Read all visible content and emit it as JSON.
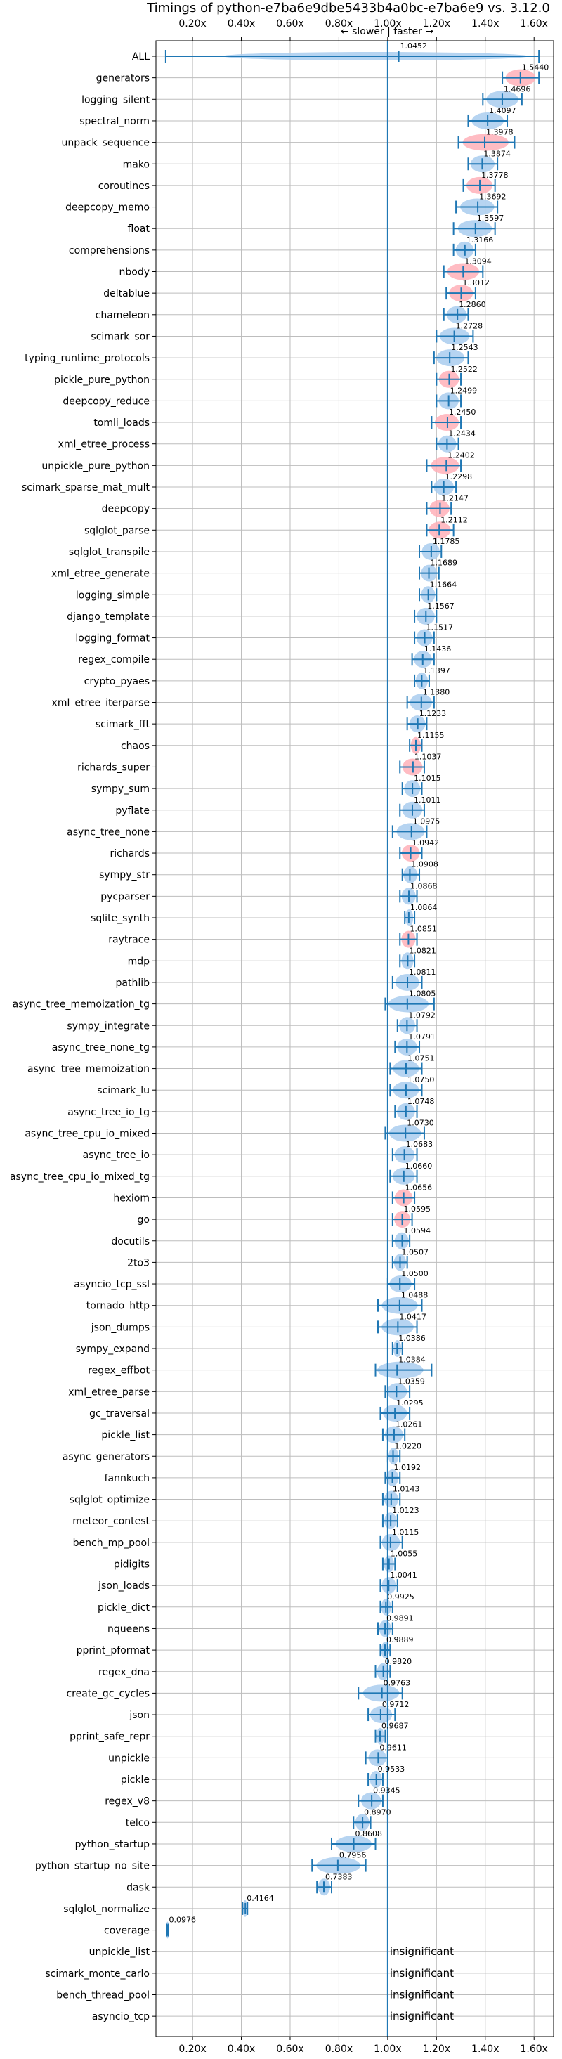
{
  "chart_data": {
    "type": "violin",
    "title": "Timings of python-e7ba6e9dbe5433b4a0bc-e7ba6e9 vs. 3.12.0",
    "direction_note": "← slower  |  faster →",
    "xlim": [
      0.05,
      1.68
    ],
    "xticks": [
      "0.20x",
      "0.40x",
      "0.60x",
      "0.80x",
      "1.00x",
      "1.20x",
      "1.40x",
      "1.60x"
    ],
    "xtick_values": [
      0.2,
      0.4,
      0.6,
      0.8,
      1.0,
      1.2,
      1.4,
      1.6
    ],
    "reference_x": 1.0,
    "insignificant_label": "insignificant",
    "colors": {
      "faster": "#ffb0b8",
      "normal": "#a9cdee",
      "line": "#1f77b4",
      "grid": "#bdbdbd"
    },
    "benchmarks": [
      {
        "name": "ALL",
        "value": 1.0452,
        "low": 0.09,
        "high": 1.62,
        "label": "1.0452"
      },
      {
        "name": "generators",
        "value": 1.544,
        "low": 1.47,
        "high": 1.62,
        "label": "1.5440",
        "faster": true
      },
      {
        "name": "logging_silent",
        "value": 1.4696,
        "low": 1.39,
        "high": 1.55,
        "label": "1.4696"
      },
      {
        "name": "spectral_norm",
        "value": 1.4097,
        "low": 1.33,
        "high": 1.49,
        "label": "1.4097"
      },
      {
        "name": "unpack_sequence",
        "value": 1.3978,
        "low": 1.29,
        "high": 1.52,
        "label": "1.3978",
        "faster": true
      },
      {
        "name": "mako",
        "value": 1.3874,
        "low": 1.33,
        "high": 1.45,
        "label": "1.3874"
      },
      {
        "name": "coroutines",
        "value": 1.3778,
        "low": 1.31,
        "high": 1.44,
        "label": "1.3778",
        "faster": true
      },
      {
        "name": "deepcopy_memo",
        "value": 1.3692,
        "low": 1.28,
        "high": 1.45,
        "label": "1.3692"
      },
      {
        "name": "float",
        "value": 1.3597,
        "low": 1.27,
        "high": 1.44,
        "label": "1.3597"
      },
      {
        "name": "comprehensions",
        "value": 1.3166,
        "low": 1.27,
        "high": 1.36,
        "label": "1.3166"
      },
      {
        "name": "nbody",
        "value": 1.3094,
        "low": 1.23,
        "high": 1.39,
        "label": "1.3094",
        "faster": true
      },
      {
        "name": "deltablue",
        "value": 1.3012,
        "low": 1.24,
        "high": 1.36,
        "label": "1.3012",
        "faster": true
      },
      {
        "name": "chameleon",
        "value": 1.286,
        "low": 1.23,
        "high": 1.33,
        "label": "1.2860"
      },
      {
        "name": "scimark_sor",
        "value": 1.2728,
        "low": 1.2,
        "high": 1.35,
        "label": "1.2728"
      },
      {
        "name": "typing_runtime_protocols",
        "value": 1.2543,
        "low": 1.19,
        "high": 1.33,
        "label": "1.2543"
      },
      {
        "name": "pickle_pure_python",
        "value": 1.2522,
        "low": 1.2,
        "high": 1.3,
        "label": "1.2522",
        "faster": true
      },
      {
        "name": "deepcopy_reduce",
        "value": 1.2499,
        "low": 1.2,
        "high": 1.3,
        "label": "1.2499"
      },
      {
        "name": "tomli_loads",
        "value": 1.245,
        "low": 1.18,
        "high": 1.3,
        "label": "1.2450",
        "faster": true
      },
      {
        "name": "xml_etree_process",
        "value": 1.2434,
        "low": 1.2,
        "high": 1.29,
        "label": "1.2434"
      },
      {
        "name": "unpickle_pure_python",
        "value": 1.2402,
        "low": 1.16,
        "high": 1.3,
        "label": "1.2402",
        "faster": true
      },
      {
        "name": "scimark_sparse_mat_mult",
        "value": 1.2298,
        "low": 1.18,
        "high": 1.28,
        "label": "1.2298"
      },
      {
        "name": "deepcopy",
        "value": 1.2147,
        "low": 1.16,
        "high": 1.26,
        "label": "1.2147",
        "faster": true
      },
      {
        "name": "sqlglot_parse",
        "value": 1.2112,
        "low": 1.16,
        "high": 1.27,
        "label": "1.2112",
        "faster": true
      },
      {
        "name": "sqlglot_transpile",
        "value": 1.1785,
        "low": 1.13,
        "high": 1.22,
        "label": "1.1785"
      },
      {
        "name": "xml_etree_generate",
        "value": 1.1689,
        "low": 1.13,
        "high": 1.21,
        "label": "1.1689"
      },
      {
        "name": "logging_simple",
        "value": 1.1664,
        "low": 1.13,
        "high": 1.2,
        "label": "1.1664"
      },
      {
        "name": "django_template",
        "value": 1.1567,
        "low": 1.11,
        "high": 1.2,
        "label": "1.1567"
      },
      {
        "name": "logging_format",
        "value": 1.1517,
        "low": 1.11,
        "high": 1.19,
        "label": "1.1517"
      },
      {
        "name": "regex_compile",
        "value": 1.1436,
        "low": 1.1,
        "high": 1.19,
        "label": "1.1436"
      },
      {
        "name": "crypto_pyaes",
        "value": 1.1397,
        "low": 1.11,
        "high": 1.17,
        "label": "1.1397"
      },
      {
        "name": "xml_etree_iterparse",
        "value": 1.138,
        "low": 1.08,
        "high": 1.19,
        "label": "1.1380"
      },
      {
        "name": "scimark_fft",
        "value": 1.1233,
        "low": 1.08,
        "high": 1.16,
        "label": "1.1233"
      },
      {
        "name": "chaos",
        "value": 1.1155,
        "low": 1.09,
        "high": 1.14,
        "label": "1.1155",
        "faster": true
      },
      {
        "name": "richards_super",
        "value": 1.1037,
        "low": 1.05,
        "high": 1.15,
        "label": "1.1037",
        "faster": true
      },
      {
        "name": "sympy_sum",
        "value": 1.1015,
        "low": 1.06,
        "high": 1.14,
        "label": "1.1015"
      },
      {
        "name": "pyflate",
        "value": 1.1011,
        "low": 1.05,
        "high": 1.15,
        "label": "1.1011"
      },
      {
        "name": "async_tree_none",
        "value": 1.0975,
        "low": 1.02,
        "high": 1.16,
        "label": "1.0975"
      },
      {
        "name": "richards",
        "value": 1.0942,
        "low": 1.05,
        "high": 1.14,
        "label": "1.0942",
        "faster": true
      },
      {
        "name": "sympy_str",
        "value": 1.0908,
        "low": 1.06,
        "high": 1.13,
        "label": "1.0908"
      },
      {
        "name": "pycparser",
        "value": 1.0868,
        "low": 1.05,
        "high": 1.12,
        "label": "1.0868"
      },
      {
        "name": "sqlite_synth",
        "value": 1.0864,
        "low": 1.07,
        "high": 1.11,
        "label": "1.0864"
      },
      {
        "name": "raytrace",
        "value": 1.0851,
        "low": 1.05,
        "high": 1.12,
        "label": "1.0851",
        "faster": true
      },
      {
        "name": "mdp",
        "value": 1.0821,
        "low": 1.05,
        "high": 1.11,
        "label": "1.0821"
      },
      {
        "name": "pathlib",
        "value": 1.0811,
        "low": 1.02,
        "high": 1.14,
        "label": "1.0811"
      },
      {
        "name": "async_tree_memoization_tg",
        "value": 1.0805,
        "low": 0.99,
        "high": 1.19,
        "label": "1.0805"
      },
      {
        "name": "sympy_integrate",
        "value": 1.0792,
        "low": 1.04,
        "high": 1.12,
        "label": "1.0792"
      },
      {
        "name": "async_tree_none_tg",
        "value": 1.0791,
        "low": 1.03,
        "high": 1.13,
        "label": "1.0791"
      },
      {
        "name": "async_tree_memoization",
        "value": 1.0751,
        "low": 1.01,
        "high": 1.14,
        "label": "1.0751"
      },
      {
        "name": "scimark_lu",
        "value": 1.075,
        "low": 1.01,
        "high": 1.14,
        "label": "1.0750"
      },
      {
        "name": "async_tree_io_tg",
        "value": 1.0748,
        "low": 1.03,
        "high": 1.12,
        "label": "1.0748"
      },
      {
        "name": "async_tree_cpu_io_mixed",
        "value": 1.073,
        "low": 0.99,
        "high": 1.15,
        "label": "1.0730"
      },
      {
        "name": "async_tree_io",
        "value": 1.0683,
        "low": 1.02,
        "high": 1.12,
        "label": "1.0683"
      },
      {
        "name": "async_tree_cpu_io_mixed_tg",
        "value": 1.066,
        "low": 1.01,
        "high": 1.12,
        "label": "1.0660"
      },
      {
        "name": "hexiom",
        "value": 1.0656,
        "low": 1.02,
        "high": 1.11,
        "label": "1.0656",
        "faster": true
      },
      {
        "name": "go",
        "value": 1.0595,
        "low": 1.02,
        "high": 1.1,
        "label": "1.0595",
        "faster": true
      },
      {
        "name": "docutils",
        "value": 1.0594,
        "low": 1.02,
        "high": 1.09,
        "label": "1.0594"
      },
      {
        "name": "2to3",
        "value": 1.0507,
        "low": 1.02,
        "high": 1.08,
        "label": "1.0507"
      },
      {
        "name": "asyncio_tcp_ssl",
        "value": 1.05,
        "low": 1.0,
        "high": 1.11,
        "label": "1.0500"
      },
      {
        "name": "tornado_http",
        "value": 1.0488,
        "low": 0.96,
        "high": 1.14,
        "label": "1.0488"
      },
      {
        "name": "json_dumps",
        "value": 1.0417,
        "low": 0.96,
        "high": 1.12,
        "label": "1.0417"
      },
      {
        "name": "sympy_expand",
        "value": 1.0386,
        "low": 1.02,
        "high": 1.06,
        "label": "1.0386"
      },
      {
        "name": "regex_effbot",
        "value": 1.0384,
        "low": 0.95,
        "high": 1.18,
        "label": "1.0384"
      },
      {
        "name": "xml_etree_parse",
        "value": 1.0359,
        "low": 0.99,
        "high": 1.09,
        "label": "1.0359"
      },
      {
        "name": "gc_traversal",
        "value": 1.0295,
        "low": 0.97,
        "high": 1.09,
        "label": "1.0295"
      },
      {
        "name": "pickle_list",
        "value": 1.0261,
        "low": 0.98,
        "high": 1.07,
        "label": "1.0261"
      },
      {
        "name": "async_generators",
        "value": 1.022,
        "low": 1.0,
        "high": 1.05,
        "label": "1.0220"
      },
      {
        "name": "fannkuch",
        "value": 1.0192,
        "low": 0.99,
        "high": 1.05,
        "label": "1.0192"
      },
      {
        "name": "sqlglot_optimize",
        "value": 1.0143,
        "low": 0.98,
        "high": 1.05,
        "label": "1.0143"
      },
      {
        "name": "meteor_contest",
        "value": 1.0123,
        "low": 0.98,
        "high": 1.04,
        "label": "1.0123"
      },
      {
        "name": "bench_mp_pool",
        "value": 1.0115,
        "low": 0.97,
        "high": 1.06,
        "label": "1.0115"
      },
      {
        "name": "pidigits",
        "value": 1.0055,
        "low": 0.98,
        "high": 1.03,
        "label": "1.0055"
      },
      {
        "name": "json_loads",
        "value": 1.0041,
        "low": 0.97,
        "high": 1.04,
        "label": "1.0041"
      },
      {
        "name": "pickle_dict",
        "value": 0.9925,
        "low": 0.97,
        "high": 1.02,
        "label": "0.9925"
      },
      {
        "name": "nqueens",
        "value": 0.9891,
        "low": 0.96,
        "high": 1.02,
        "label": "0.9891"
      },
      {
        "name": "pprint_pformat",
        "value": 0.9889,
        "low": 0.97,
        "high": 1.01,
        "label": "0.9889"
      },
      {
        "name": "regex_dna",
        "value": 0.982,
        "low": 0.95,
        "high": 1.01,
        "label": "0.9820"
      },
      {
        "name": "create_gc_cycles",
        "value": 0.9763,
        "low": 0.88,
        "high": 1.06,
        "label": "0.9763"
      },
      {
        "name": "json",
        "value": 0.9712,
        "low": 0.92,
        "high": 1.03,
        "label": "0.9712"
      },
      {
        "name": "pprint_safe_repr",
        "value": 0.9687,
        "low": 0.95,
        "high": 0.99,
        "label": "0.9687"
      },
      {
        "name": "unpickle",
        "value": 0.9611,
        "low": 0.91,
        "high": 1.0,
        "label": "0.9611"
      },
      {
        "name": "pickle",
        "value": 0.9533,
        "low": 0.92,
        "high": 0.98,
        "label": "0.9533"
      },
      {
        "name": "regex_v8",
        "value": 0.9345,
        "low": 0.88,
        "high": 0.98,
        "label": "0.9345"
      },
      {
        "name": "telco",
        "value": 0.897,
        "low": 0.86,
        "high": 0.93,
        "label": "0.8970"
      },
      {
        "name": "python_startup",
        "value": 0.8608,
        "low": 0.77,
        "high": 0.95,
        "label": "0.8608"
      },
      {
        "name": "python_startup_no_site",
        "value": 0.7956,
        "low": 0.69,
        "high": 0.91,
        "label": "0.7956"
      },
      {
        "name": "dask",
        "value": 0.7383,
        "low": 0.71,
        "high": 0.77,
        "label": "0.7383"
      },
      {
        "name": "sqlglot_normalize",
        "value": 0.4164,
        "low": 0.405,
        "high": 0.425,
        "label": "0.4164"
      },
      {
        "name": "coverage",
        "value": 0.0976,
        "low": 0.094,
        "high": 0.101,
        "label": "0.0976"
      },
      {
        "name": "unpickle_list",
        "insignificant": true
      },
      {
        "name": "scimark_monte_carlo",
        "insignificant": true
      },
      {
        "name": "bench_thread_pool",
        "insignificant": true
      },
      {
        "name": "asyncio_tcp",
        "insignificant": true
      }
    ]
  }
}
